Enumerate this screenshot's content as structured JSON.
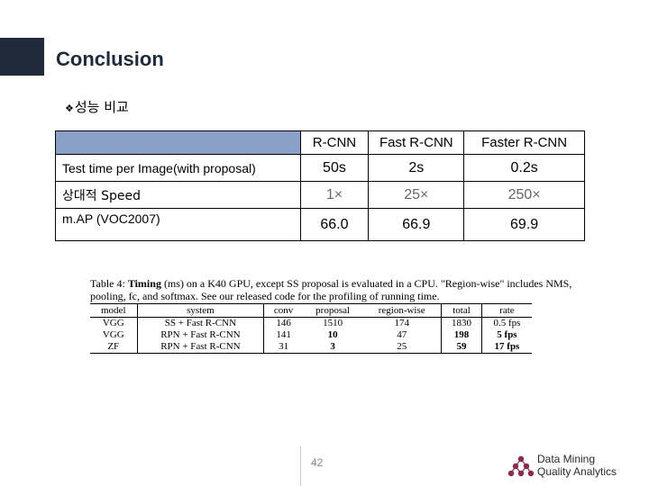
{
  "slide": {
    "title": "Conclusion",
    "subtitle_bullet": "❖",
    "subtitle": "성능 비교",
    "page_number": "42"
  },
  "comparison": {
    "headers": [
      "",
      "R-CNN",
      "Fast R-CNN",
      "Faster R-CNN"
    ],
    "rows": [
      {
        "label": "Test time per Image(with proposal)",
        "values": [
          "50s",
          "2s",
          "0.2s"
        ]
      },
      {
        "label": "상대적 Speed",
        "values": [
          "1×",
          "25×",
          "250×"
        ]
      },
      {
        "label": "m.AP (VOC2007)",
        "values": [
          "66.0",
          "66.9",
          "69.9"
        ]
      }
    ],
    "header_color": "#8ba0c6"
  },
  "paper_table": {
    "caption_lead": "Table 4: ",
    "caption_bold": "Timing",
    "caption_rest": " (ms) on a K40 GPU, except SS proposal is evaluated in a CPU. \"Region-wise\" includes NMS, pooling, fc, and softmax. See our released code for the profiling of running time.",
    "headers": [
      "model",
      "system",
      "conv",
      "proposal",
      "region-wise",
      "total",
      "rate"
    ],
    "rows": [
      [
        "VGG",
        "SS + Fast R-CNN",
        "146",
        "1510",
        "174",
        "1830",
        "0.5 fps"
      ],
      [
        "VGG",
        "RPN + Fast R-CNN",
        "141",
        "10",
        "47",
        "198",
        "5 fps"
      ],
      [
        "ZF",
        "RPN + Fast R-CNN",
        "31",
        "3",
        "25",
        "59",
        "17 fps"
      ]
    ]
  },
  "logo": {
    "line1": "Data Mining",
    "line2": "Quality Analytics",
    "color": "#8b2a4a"
  }
}
